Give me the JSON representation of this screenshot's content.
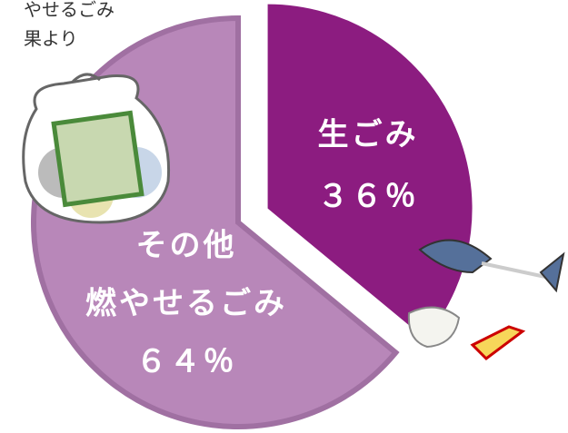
{
  "chart_data": {
    "type": "pie",
    "annotations": [
      "やせるごみ",
      "果より"
    ],
    "categories": [
      [
        "生ごみ"
      ],
      [
        "その他",
        "燃やせるごみ"
      ]
    ],
    "values": [
      36,
      64
    ],
    "value_labels": [
      "３６％",
      "６４％"
    ],
    "colors": [
      "#8c1c80",
      "#b887b9"
    ]
  }
}
